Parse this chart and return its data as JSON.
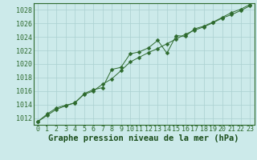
{
  "title": "Graphe pression niveau de la mer (hPa)",
  "x": [
    0,
    1,
    2,
    3,
    4,
    5,
    6,
    7,
    8,
    9,
    10,
    11,
    12,
    13,
    14,
    15,
    16,
    17,
    18,
    19,
    20,
    21,
    22,
    23
  ],
  "line1": [
    1011.5,
    1012.4,
    1013.3,
    1013.8,
    1014.3,
    1015.5,
    1016.0,
    1017.0,
    1017.8,
    1019.0,
    1020.3,
    1021.0,
    1021.7,
    1022.3,
    1023.0,
    1023.7,
    1024.4,
    1025.0,
    1025.5,
    1026.1,
    1026.8,
    1027.3,
    1027.9,
    1028.6
  ],
  "line2": [
    1011.5,
    1012.6,
    1013.5,
    1013.9,
    1014.2,
    1015.6,
    1016.2,
    1016.5,
    1019.2,
    1019.5,
    1021.5,
    1021.8,
    1022.4,
    1023.5,
    1021.6,
    1024.2,
    1024.1,
    1025.2,
    1025.6,
    1026.2,
    1026.9,
    1027.6,
    1028.1,
    1028.8
  ],
  "ylim": [
    1011,
    1029
  ],
  "yticks": [
    1012,
    1014,
    1016,
    1018,
    1020,
    1022,
    1024,
    1026,
    1028
  ],
  "line_color": "#2d6a2d",
  "marker": "D",
  "markersize": 2.5,
  "bg_color": "#cceaea",
  "grid_color": "#aad0d0",
  "title_color": "#1a4d1a",
  "title_fontsize": 7.5,
  "tick_fontsize": 6.0,
  "linewidth": 0.7
}
